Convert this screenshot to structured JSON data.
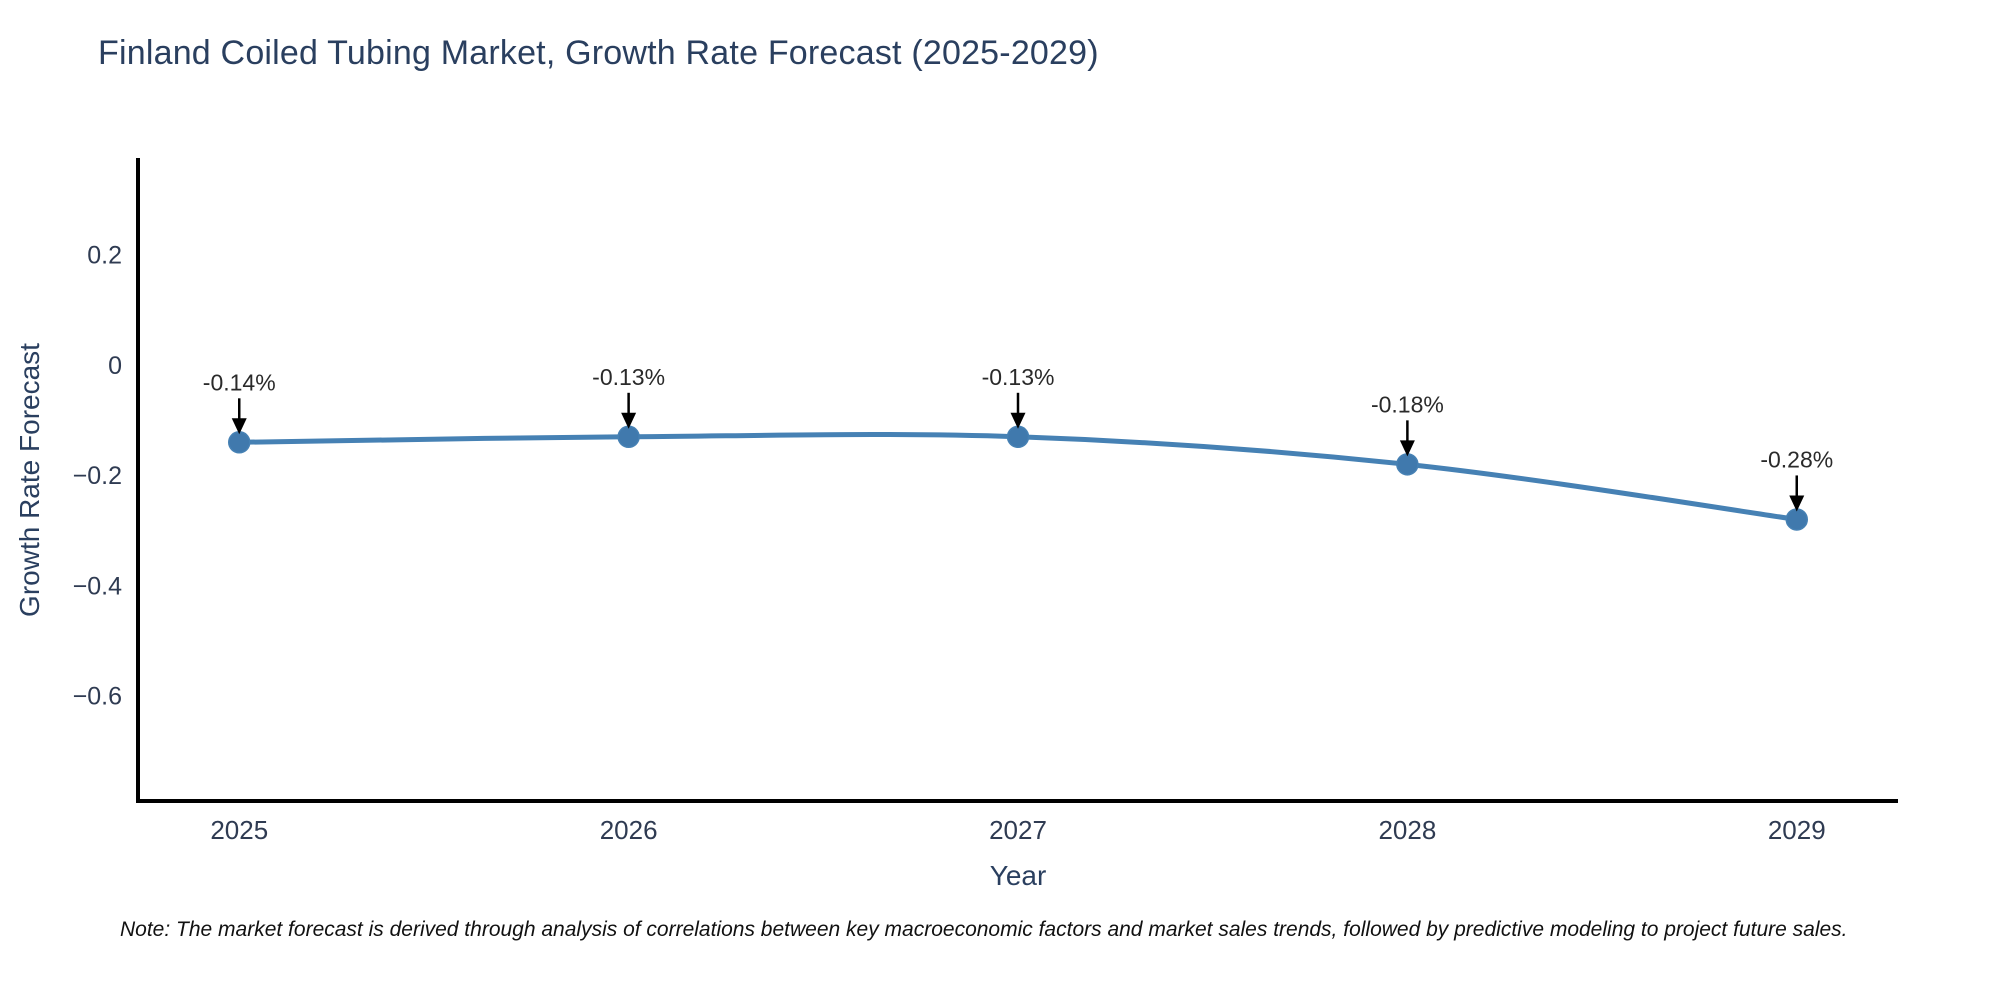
{
  "chart_data": {
    "type": "line",
    "title": "Finland Coiled Tubing Market, Growth Rate Forecast (2025-2029)",
    "xlabel": "Year",
    "ylabel": "Growth Rate Forecast",
    "x": [
      2025,
      2026,
      2027,
      2028,
      2029
    ],
    "y": [
      -0.14,
      -0.13,
      -0.13,
      -0.18,
      -0.28
    ],
    "point_labels": [
      "-0.14%",
      "-0.13%",
      "-0.13%",
      "-0.18%",
      "-0.28%"
    ],
    "xticks": {
      "values": [
        2025,
        2026,
        2027,
        2028,
        2029
      ],
      "labels": [
        "2025",
        "2026",
        "2027",
        "2028",
        "2029"
      ]
    },
    "yticks": {
      "values": [
        0.2,
        0,
        -0.2,
        -0.4,
        -0.6
      ],
      "labels": [
        "0.2",
        "0",
        "−0.2",
        "−0.4",
        "−0.6"
      ]
    },
    "xlim": [
      2024.74,
      2029.26
    ],
    "ylim": [
      -0.791,
      0.376
    ],
    "grid": false,
    "legend": false,
    "line_shape": "spline",
    "colors": {
      "line": "#4681b4",
      "marker": "#4079ad",
      "axis": "#000000",
      "annotation": "#2a2a2a",
      "tick": "#2f3b52",
      "title": "#2a3f5f"
    }
  },
  "note": {
    "text": "Note: The market forecast is derived through analysis of correlations between key macroeconomic factors and market sales trends, followed by predictive modeling to project future sales."
  }
}
